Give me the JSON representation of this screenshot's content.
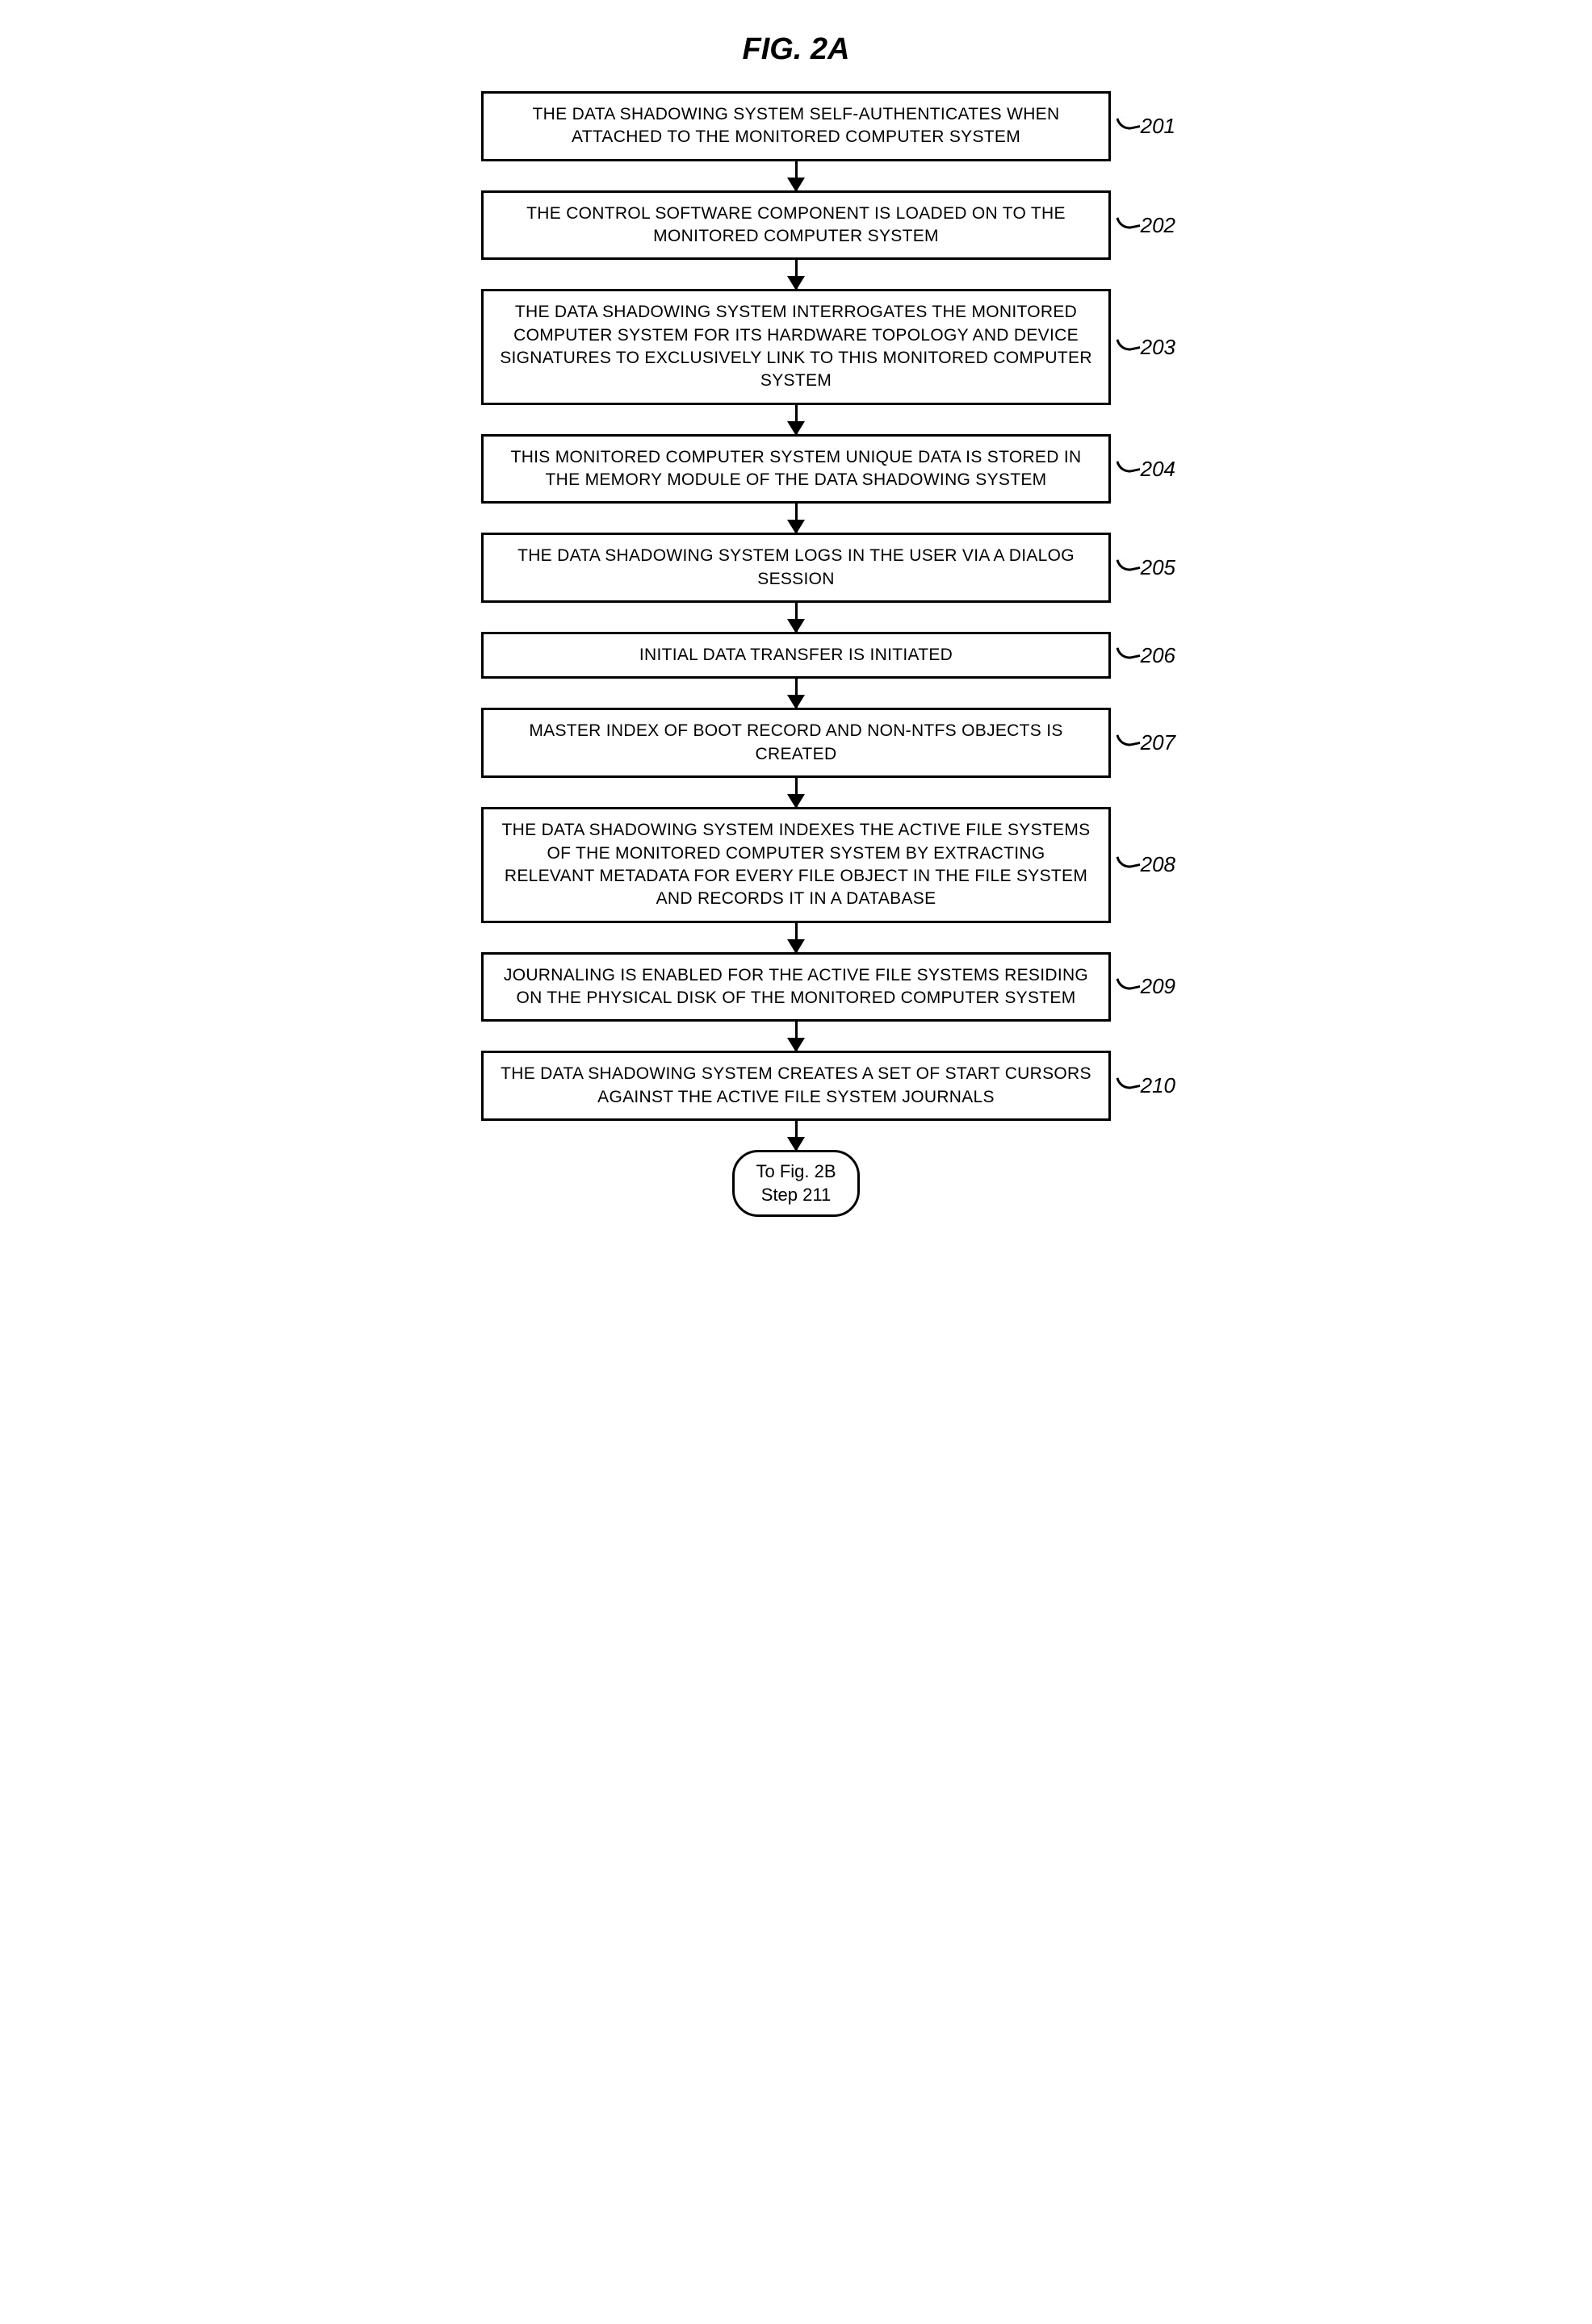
{
  "figure": {
    "title": "FIG. 2A",
    "title_fontsize": 38,
    "box_border_width": 3,
    "box_border_color": "#000000",
    "background_color": "#ffffff",
    "text_color": "#000000",
    "font_family": "Arial",
    "box_fontsize": 21,
    "ref_fontsize": 26,
    "arrow_length": 36,
    "arrow_width": 3,
    "steps": [
      {
        "ref": "201",
        "text": "THE DATA SHADOWING SYSTEM SELF-AUTHENTICATES WHEN ATTACHED TO THE MONITORED COMPUTER SYSTEM"
      },
      {
        "ref": "202",
        "text": "THE CONTROL SOFTWARE COMPONENT IS LOADED ON TO THE MONITORED COMPUTER SYSTEM"
      },
      {
        "ref": "203",
        "text": "THE DATA SHADOWING SYSTEM INTERROGATES THE MONITORED COMPUTER SYSTEM FOR ITS HARDWARE TOPOLOGY AND DEVICE SIGNATURES TO EXCLUSIVELY LINK TO THIS MONITORED COMPUTER SYSTEM"
      },
      {
        "ref": "204",
        "text": "THIS MONITORED COMPUTER SYSTEM UNIQUE DATA IS STORED IN THE MEMORY MODULE OF THE DATA SHADOWING SYSTEM"
      },
      {
        "ref": "205",
        "text": "THE DATA SHADOWING SYSTEM LOGS IN THE USER VIA A DIALOG SESSION"
      },
      {
        "ref": "206",
        "text": "INITIAL DATA TRANSFER IS INITIATED"
      },
      {
        "ref": "207",
        "text": "MASTER INDEX OF BOOT RECORD AND NON-NTFS OBJECTS IS CREATED"
      },
      {
        "ref": "208",
        "text": "THE DATA SHADOWING SYSTEM INDEXES THE ACTIVE FILE SYSTEMS OF THE MONITORED COMPUTER SYSTEM BY EXTRACTING RELEVANT METADATA FOR EVERY FILE OBJECT IN THE FILE SYSTEM AND RECORDS IT IN A DATABASE"
      },
      {
        "ref": "209",
        "text": "JOURNALING IS ENABLED FOR THE ACTIVE FILE SYSTEMS RESIDING ON THE PHYSICAL DISK OF THE MONITORED COMPUTER SYSTEM"
      },
      {
        "ref": "210",
        "text": "THE DATA SHADOWING SYSTEM CREATES A SET OF START CURSORS AGAINST THE ACTIVE FILE SYSTEM JOURNALS"
      }
    ],
    "terminal": {
      "line1": "To Fig. 2B",
      "line2": "Step 211"
    }
  }
}
